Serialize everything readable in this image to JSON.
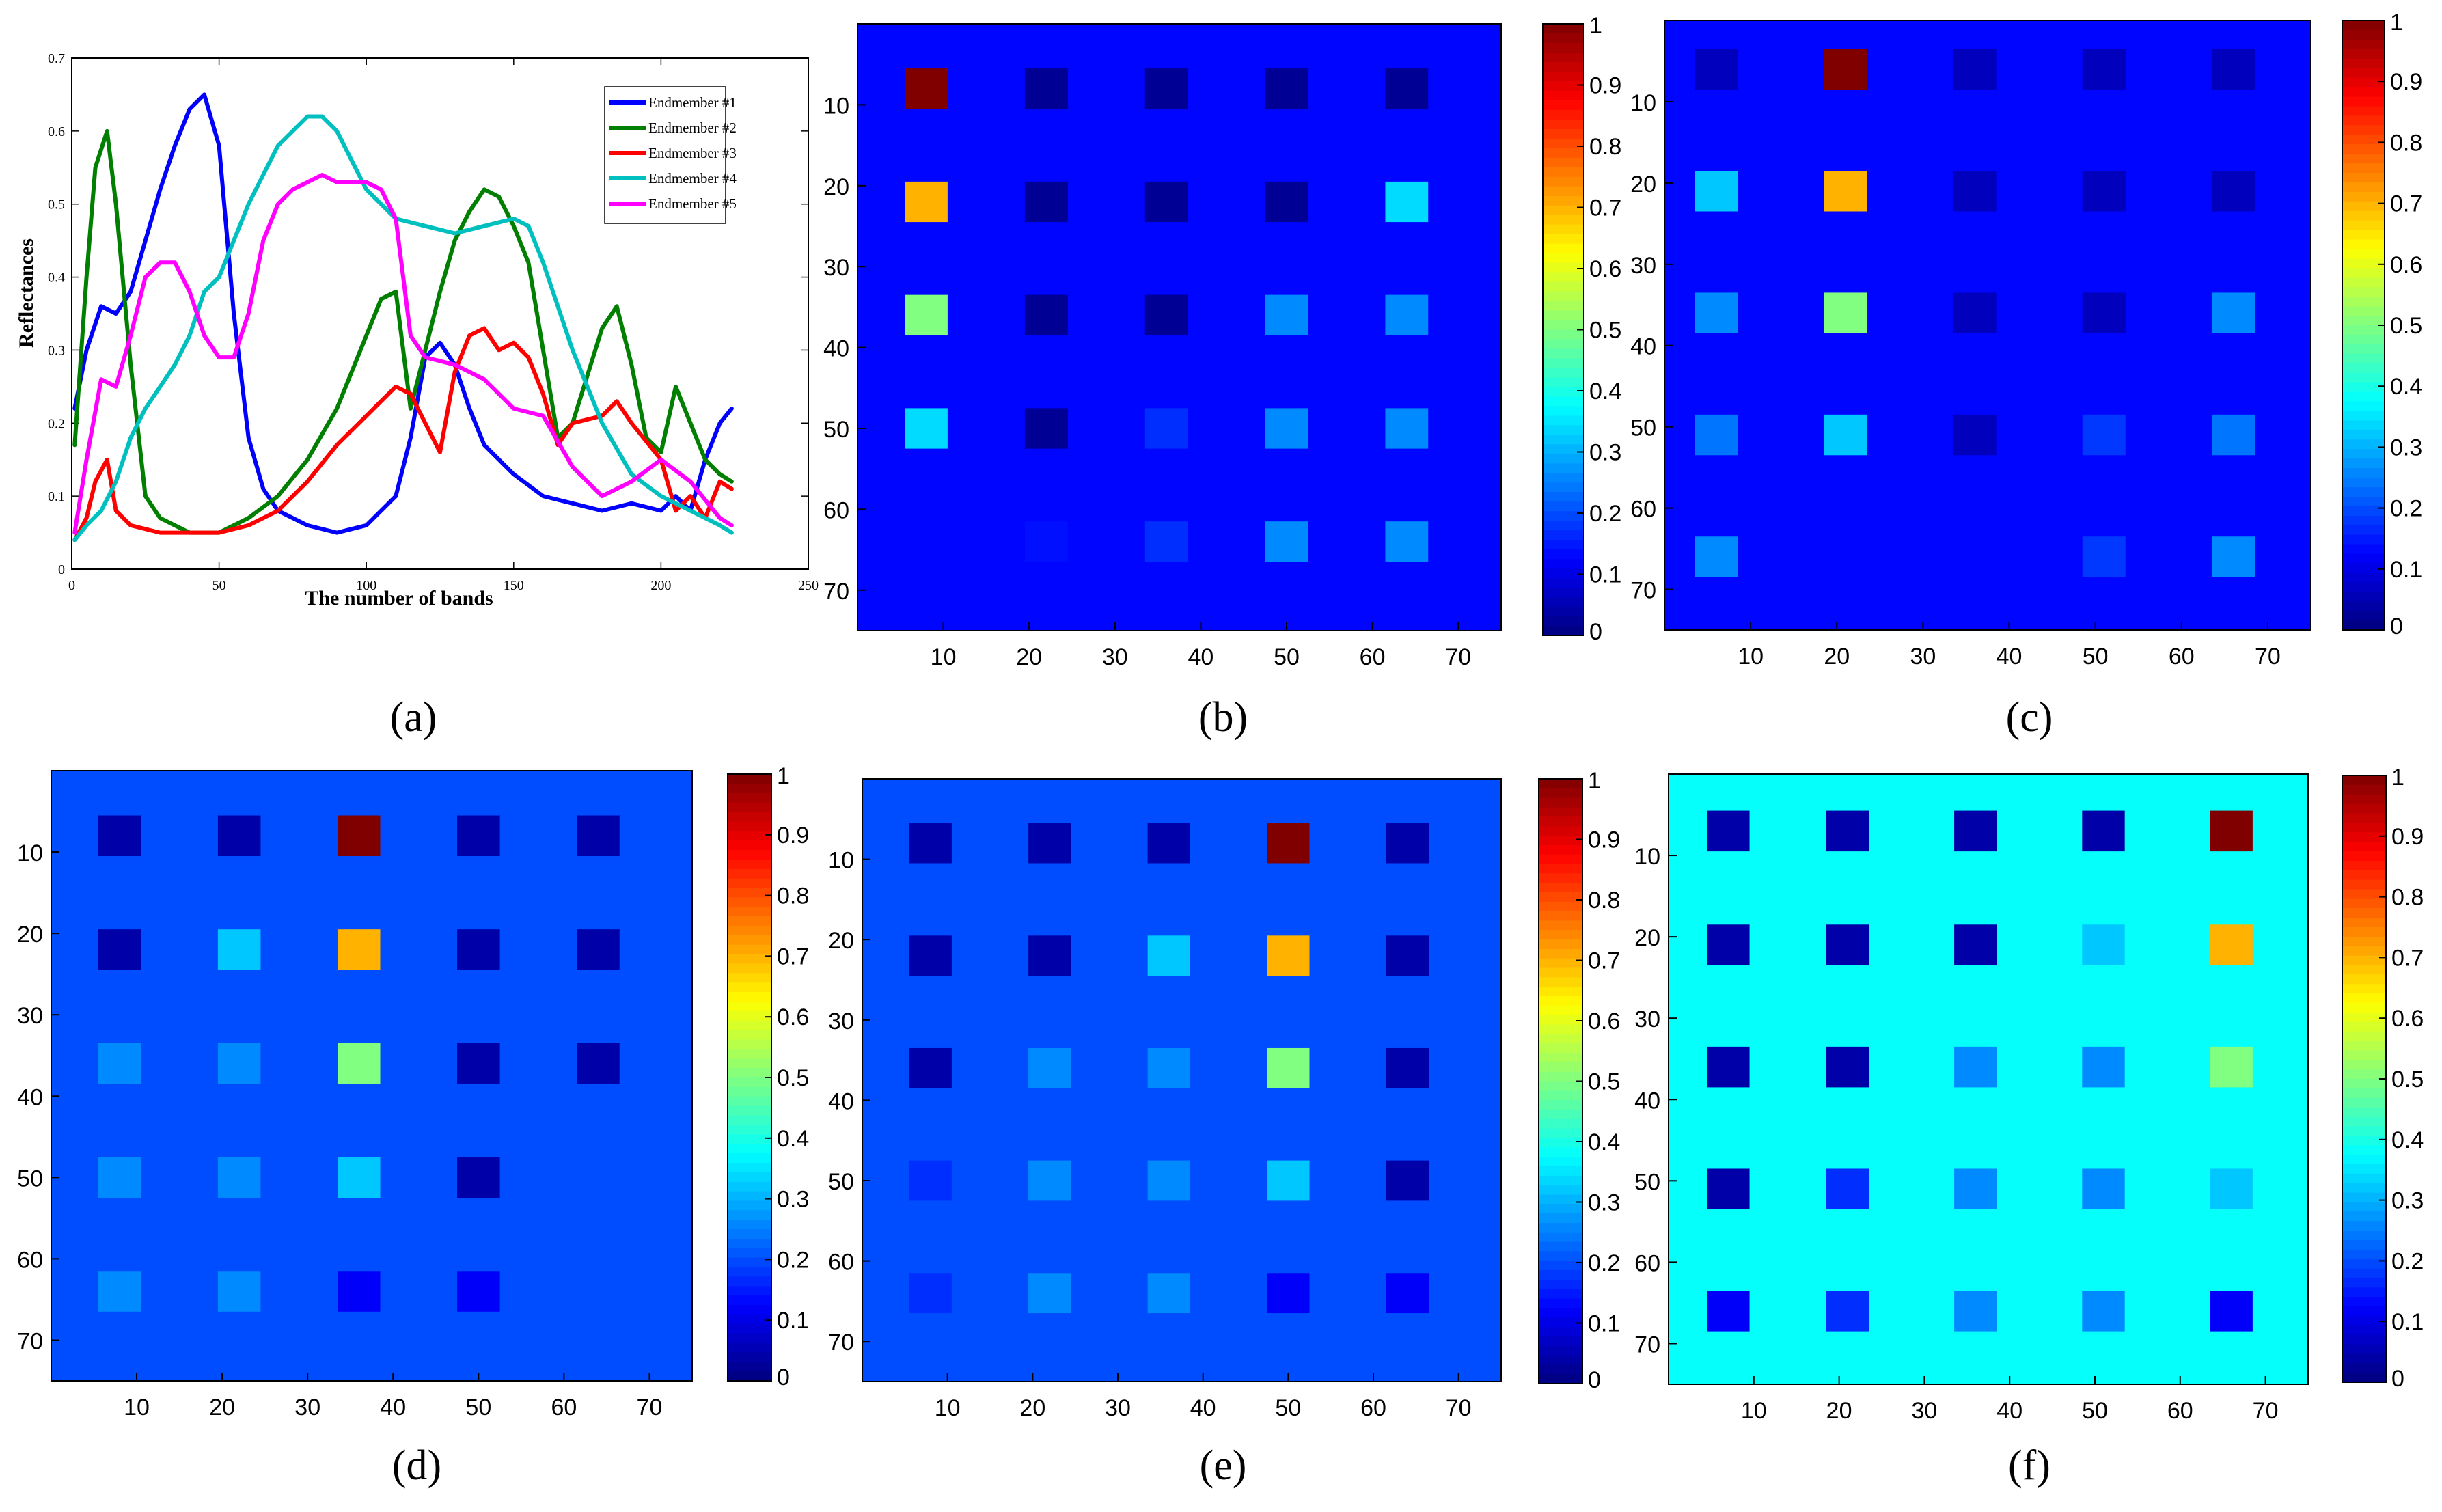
{
  "chart_data": [
    {
      "id": "a",
      "type": "line",
      "caption": "a",
      "xlabel": "The number of bands",
      "ylabel": "Reflectances",
      "xlim": [
        0,
        250
      ],
      "ylim": [
        0,
        0.7
      ],
      "xticks": [
        "0",
        "50",
        "100",
        "150",
        "200",
        "250"
      ],
      "yticks": [
        "0",
        "0.1",
        "0.2",
        "0.3",
        "0.4",
        "0.5",
        "0.6",
        "0.7"
      ],
      "legend_position": "top-right",
      "series": [
        {
          "name": "Endmember #1",
          "color": "#0000ff",
          "x": [
            1,
            5,
            10,
            15,
            20,
            25,
            30,
            35,
            40,
            45,
            50,
            55,
            60,
            65,
            70,
            80,
            90,
            100,
            110,
            115,
            120,
            125,
            130,
            135,
            140,
            150,
            160,
            170,
            180,
            190,
            200,
            205,
            210,
            215,
            220,
            224
          ],
          "y": [
            0.22,
            0.3,
            0.36,
            0.35,
            0.38,
            0.45,
            0.52,
            0.58,
            0.63,
            0.65,
            0.58,
            0.35,
            0.18,
            0.11,
            0.08,
            0.06,
            0.05,
            0.06,
            0.1,
            0.18,
            0.29,
            0.31,
            0.28,
            0.22,
            0.17,
            0.13,
            0.1,
            0.09,
            0.08,
            0.09,
            0.08,
            0.1,
            0.08,
            0.15,
            0.2,
            0.22
          ]
        },
        {
          "name": "Endmember #2",
          "color": "#007f00",
          "x": [
            1,
            5,
            8,
            12,
            15,
            20,
            25,
            30,
            35,
            40,
            50,
            60,
            70,
            80,
            90,
            100,
            105,
            110,
            115,
            120,
            125,
            130,
            135,
            140,
            145,
            150,
            155,
            160,
            165,
            170,
            180,
            185,
            190,
            195,
            200,
            205,
            210,
            215,
            220,
            224
          ],
          "y": [
            0.17,
            0.4,
            0.55,
            0.6,
            0.5,
            0.28,
            0.1,
            0.07,
            0.06,
            0.05,
            0.05,
            0.07,
            0.1,
            0.15,
            0.22,
            0.32,
            0.37,
            0.38,
            0.22,
            0.3,
            0.38,
            0.45,
            0.49,
            0.52,
            0.51,
            0.47,
            0.42,
            0.3,
            0.18,
            0.2,
            0.33,
            0.36,
            0.28,
            0.18,
            0.16,
            0.25,
            0.2,
            0.15,
            0.13,
            0.12
          ]
        },
        {
          "name": "Endmember #3",
          "color": "#ff0000",
          "x": [
            1,
            5,
            8,
            12,
            15,
            20,
            30,
            40,
            50,
            60,
            70,
            80,
            90,
            100,
            110,
            115,
            120,
            125,
            130,
            135,
            140,
            145,
            150,
            155,
            160,
            165,
            170,
            180,
            185,
            190,
            200,
            205,
            210,
            215,
            220,
            224
          ],
          "y": [
            0.04,
            0.07,
            0.12,
            0.15,
            0.08,
            0.06,
            0.05,
            0.05,
            0.05,
            0.06,
            0.08,
            0.12,
            0.17,
            0.21,
            0.25,
            0.24,
            0.2,
            0.16,
            0.27,
            0.32,
            0.33,
            0.3,
            0.31,
            0.29,
            0.24,
            0.17,
            0.2,
            0.21,
            0.23,
            0.2,
            0.15,
            0.08,
            0.1,
            0.07,
            0.12,
            0.11
          ]
        },
        {
          "name": "Endmember #4",
          "color": "#00bfbf",
          "x": [
            1,
            5,
            10,
            15,
            20,
            25,
            30,
            35,
            40,
            45,
            50,
            55,
            60,
            70,
            80,
            85,
            90,
            95,
            100,
            110,
            120,
            130,
            140,
            150,
            155,
            160,
            170,
            180,
            190,
            200,
            210,
            220,
            224
          ],
          "y": [
            0.04,
            0.06,
            0.08,
            0.12,
            0.18,
            0.22,
            0.25,
            0.28,
            0.32,
            0.38,
            0.4,
            0.45,
            0.5,
            0.58,
            0.62,
            0.62,
            0.6,
            0.56,
            0.52,
            0.48,
            0.47,
            0.46,
            0.47,
            0.48,
            0.47,
            0.42,
            0.3,
            0.2,
            0.13,
            0.1,
            0.08,
            0.06,
            0.05
          ]
        },
        {
          "name": "Endmember #5",
          "color": "#ff00ff",
          "x": [
            1,
            5,
            10,
            15,
            20,
            25,
            30,
            35,
            40,
            45,
            50,
            55,
            60,
            65,
            70,
            75,
            80,
            85,
            90,
            100,
            105,
            110,
            115,
            120,
            130,
            140,
            150,
            160,
            170,
            180,
            190,
            200,
            210,
            220,
            224
          ],
          "y": [
            0.05,
            0.15,
            0.26,
            0.25,
            0.32,
            0.4,
            0.42,
            0.42,
            0.38,
            0.32,
            0.29,
            0.29,
            0.35,
            0.45,
            0.5,
            0.52,
            0.53,
            0.54,
            0.53,
            0.53,
            0.52,
            0.48,
            0.32,
            0.29,
            0.28,
            0.26,
            0.22,
            0.21,
            0.14,
            0.1,
            0.12,
            0.15,
            0.12,
            0.07,
            0.06
          ]
        }
      ]
    },
    {
      "id": "b",
      "type": "heatmap",
      "caption": "b",
      "xticks": [
        "10",
        "20",
        "30",
        "40",
        "50",
        "60",
        "70"
      ],
      "yticks": [
        "10",
        "20",
        "30",
        "40",
        "50",
        "60",
        "70"
      ],
      "range": [
        0,
        75
      ],
      "clim": [
        0,
        1
      ],
      "background": 0.13,
      "block_centers": [
        8,
        22,
        36,
        50,
        64
      ],
      "block_size": 5,
      "blocks": [
        [
          1.0,
          0.02,
          0.02,
          0.02,
          0.02
        ],
        [
          0.7,
          0.02,
          0.02,
          0.02,
          0.34
        ],
        [
          0.5,
          0.02,
          0.02,
          0.26,
          0.26
        ],
        [
          0.34,
          0.02,
          0.17,
          0.26,
          0.26
        ],
        [
          0.13,
          0.14,
          0.17,
          0.26,
          0.26
        ]
      ]
    },
    {
      "id": "c",
      "type": "heatmap",
      "caption": "c",
      "xticks": [
        "10",
        "20",
        "30",
        "40",
        "50",
        "60",
        "70"
      ],
      "yticks": [
        "10",
        "20",
        "30",
        "40",
        "50",
        "60",
        "70"
      ],
      "range": [
        0,
        75
      ],
      "clim": [
        0,
        1
      ],
      "background": 0.13,
      "block_centers": [
        6,
        21,
        36,
        51,
        66
      ],
      "block_size": 5,
      "blocks": [
        [
          0.06,
          1.0,
          0.06,
          0.06,
          0.06
        ],
        [
          0.32,
          0.7,
          0.06,
          0.06,
          0.06
        ],
        [
          0.26,
          0.5,
          0.06,
          0.06,
          0.26
        ],
        [
          0.24,
          0.32,
          0.06,
          0.18,
          0.24
        ],
        [
          0.26,
          0.13,
          0.13,
          0.18,
          0.26
        ]
      ]
    },
    {
      "id": "d",
      "type": "heatmap",
      "caption": "d",
      "xticks": [
        "10",
        "20",
        "30",
        "40",
        "50",
        "60",
        "70"
      ],
      "yticks": [
        "10",
        "20",
        "30",
        "40",
        "50",
        "60",
        "70"
      ],
      "range": [
        0,
        75
      ],
      "clim": [
        0,
        1
      ],
      "background": 0.2,
      "block_centers": [
        8,
        22,
        36,
        50,
        64
      ],
      "block_size": 5,
      "blocks": [
        [
          0.04,
          0.04,
          1.0,
          0.04,
          0.04
        ],
        [
          0.04,
          0.32,
          0.7,
          0.04,
          0.04
        ],
        [
          0.26,
          0.26,
          0.5,
          0.04,
          0.04
        ],
        [
          0.26,
          0.26,
          0.32,
          0.04,
          0.2
        ],
        [
          0.26,
          0.26,
          0.12,
          0.12,
          0.2
        ]
      ]
    },
    {
      "id": "e",
      "type": "heatmap",
      "caption": "e",
      "xticks": [
        "10",
        "20",
        "30",
        "40",
        "50",
        "60",
        "70"
      ],
      "yticks": [
        "10",
        "20",
        "30",
        "40",
        "50",
        "60",
        "70"
      ],
      "range": [
        0,
        75
      ],
      "clim": [
        0,
        1
      ],
      "background": 0.2,
      "block_centers": [
        8,
        22,
        36,
        50,
        64
      ],
      "block_size": 5,
      "blocks": [
        [
          0.04,
          0.04,
          0.04,
          1.0,
          0.04
        ],
        [
          0.04,
          0.04,
          0.32,
          0.7,
          0.04
        ],
        [
          0.04,
          0.26,
          0.26,
          0.5,
          0.04
        ],
        [
          0.17,
          0.26,
          0.26,
          0.32,
          0.04
        ],
        [
          0.17,
          0.26,
          0.26,
          0.12,
          0.12
        ]
      ]
    },
    {
      "id": "f",
      "type": "heatmap",
      "caption": "f",
      "xticks": [
        "10",
        "20",
        "30",
        "40",
        "50",
        "60",
        "70"
      ],
      "yticks": [
        "10",
        "20",
        "30",
        "40",
        "50",
        "60",
        "70"
      ],
      "range": [
        0,
        75
      ],
      "clim": [
        0,
        1
      ],
      "background": 0.38,
      "block_centers": [
        7,
        21,
        36,
        51,
        66
      ],
      "block_size": 5,
      "blocks": [
        [
          0.04,
          0.04,
          0.04,
          0.04,
          1.0
        ],
        [
          0.04,
          0.04,
          0.04,
          0.32,
          0.7
        ],
        [
          0.04,
          0.04,
          0.26,
          0.26,
          0.5
        ],
        [
          0.04,
          0.17,
          0.26,
          0.26,
          0.32
        ],
        [
          0.12,
          0.17,
          0.26,
          0.26,
          0.12
        ]
      ]
    }
  ],
  "colorbar_ticks": [
    "0",
    "0.1",
    "0.2",
    "0.3",
    "0.4",
    "0.5",
    "0.6",
    "0.7",
    "0.8",
    "0.9",
    "1"
  ]
}
